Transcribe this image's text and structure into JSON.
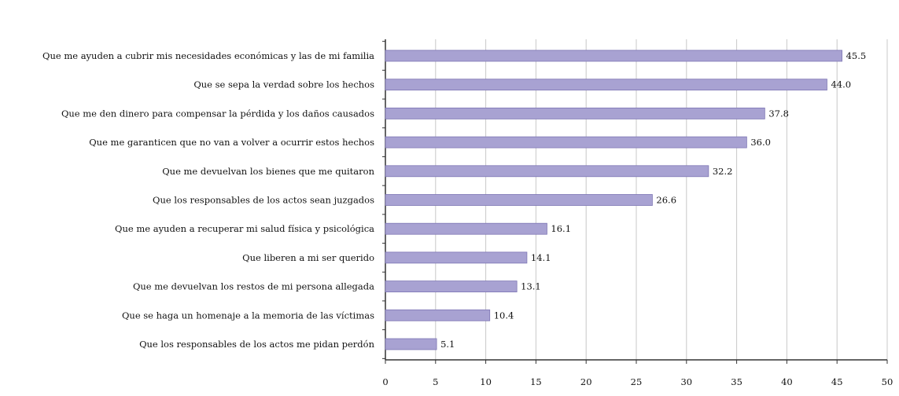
{
  "chart_data": {
    "type": "bar",
    "orientation": "horizontal",
    "title": "",
    "xlabel": "",
    "ylabel": "",
    "categories": [
      "Que me ayuden a cubrir mis necesidades económicas y las de mi familia",
      "Que se sepa la verdad sobre los hechos",
      "Que me den dinero para compensar la pérdida y los daños causados",
      "Que me garanticen que no van a volver a ocurrir estos hechos",
      "Que me devuelvan los bienes que me quitaron",
      "Que los responsables de los actos sean juzgados",
      "Que me ayuden a recuperar mi salud física y psicológica",
      "Que liberen a mi ser querido",
      "Que me devuelvan los restos de mi persona allegada",
      "Que se haga un homenaje a la memoria de las víctimas",
      "Que los responsables de los actos me pidan perdón"
    ],
    "values": [
      45.5,
      44.0,
      37.8,
      36.0,
      32.2,
      26.6,
      16.1,
      14.1,
      13.1,
      10.4,
      5.1
    ],
    "value_labels": [
      "45.5",
      "44.0",
      "37.8",
      "36.0",
      "32.2",
      "26.6",
      "16.1",
      "14.1",
      "13.1",
      "10.4",
      "5.1"
    ],
    "xlim": [
      0,
      50
    ],
    "x_ticks": [
      0,
      5,
      10,
      15,
      20,
      25,
      30,
      35,
      40,
      45,
      50
    ],
    "grid": true,
    "legend": "none",
    "colors": {
      "bar_fill": "#a8a2d2",
      "bar_stroke": "#7d76b4",
      "grid": "#c8c8c8",
      "axis": "#333333",
      "text": "#111111"
    }
  }
}
